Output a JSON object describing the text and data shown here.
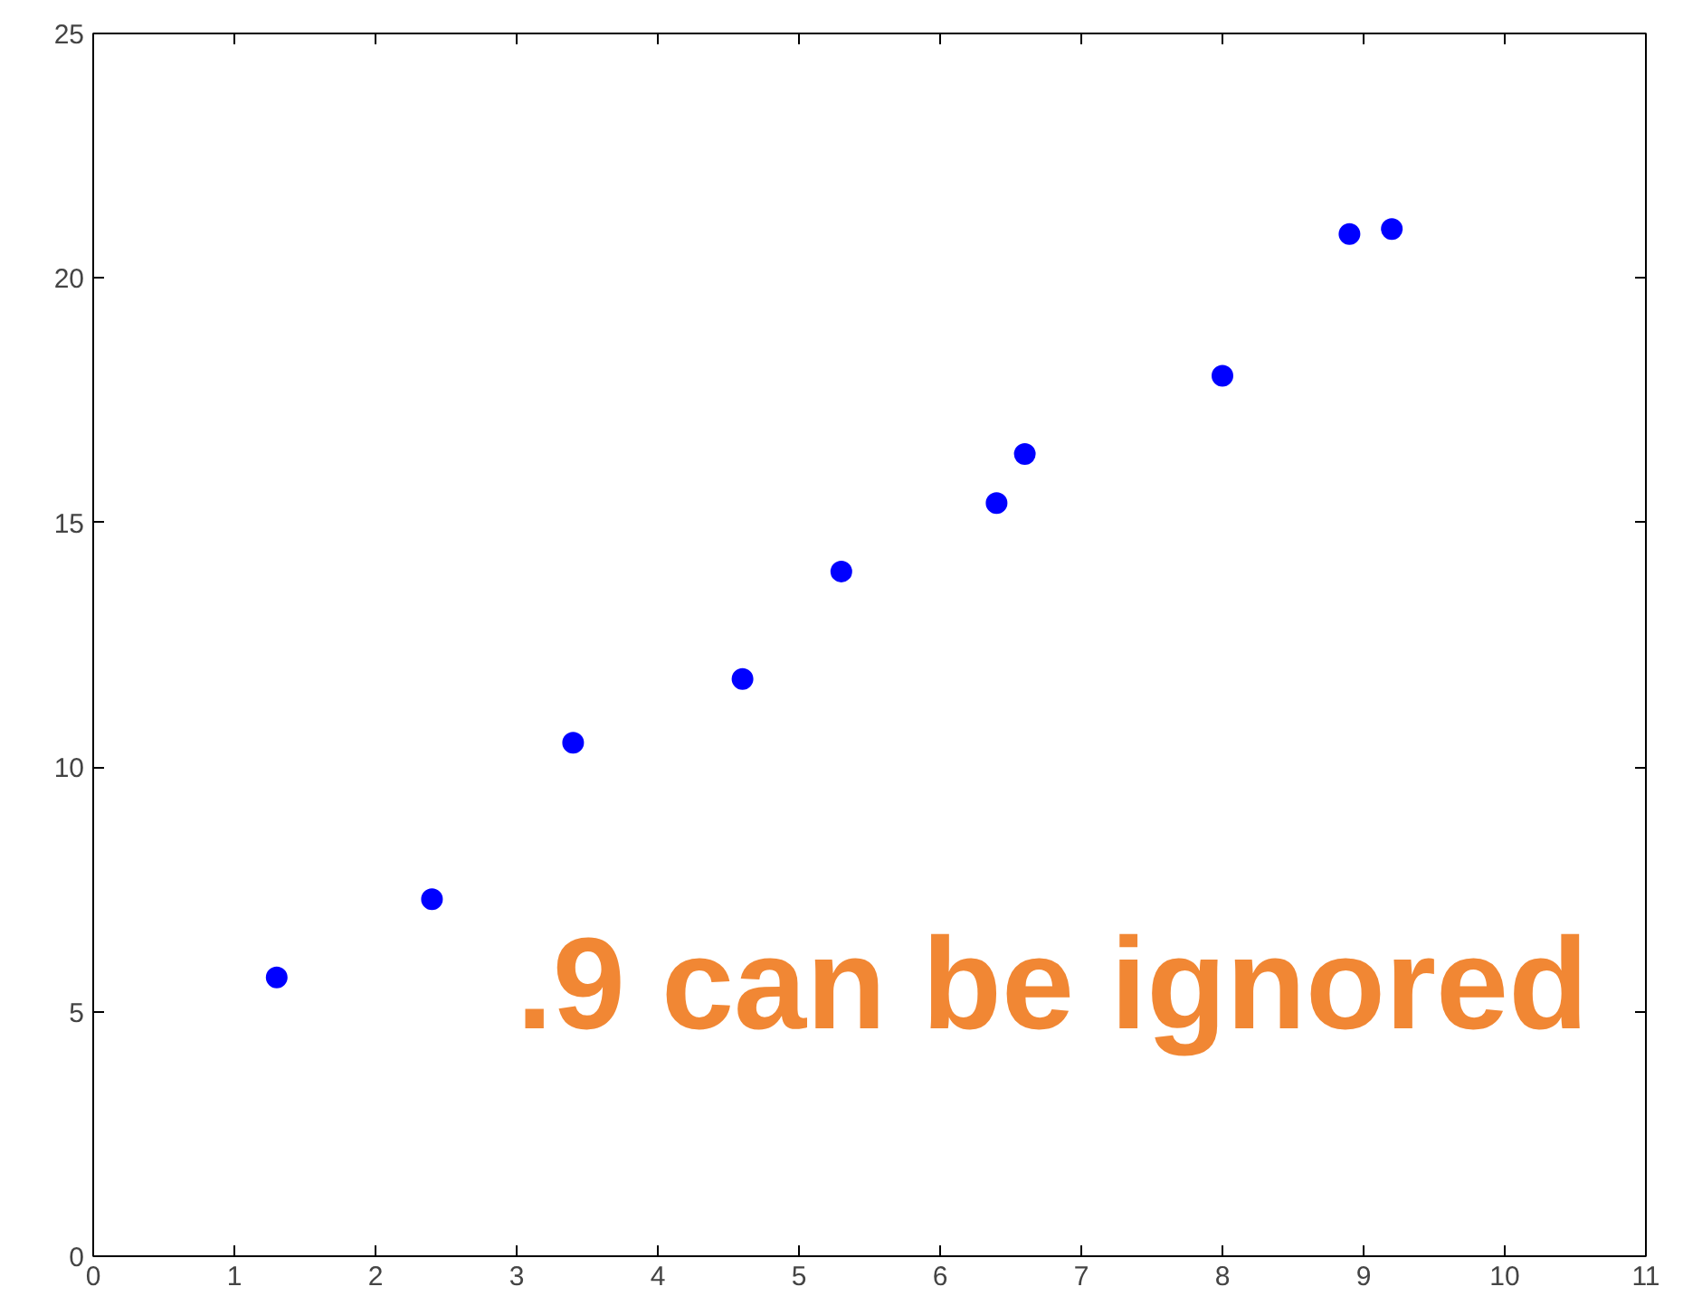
{
  "chart_data": {
    "type": "scatter",
    "x": [
      1.3,
      2.4,
      3.4,
      4.6,
      5.3,
      6.4,
      6.6,
      8.0,
      8.9,
      9.2
    ],
    "series": [
      {
        "color": "#0000ff",
        "values": [
          5.7,
          7.3,
          10.5,
          11.8,
          14.0,
          15.4,
          16.4,
          18.0,
          20.9,
          21.0
        ]
      }
    ],
    "marker": "circle",
    "xlim": [
      0,
      11
    ],
    "xticks": [
      0,
      1,
      2,
      3,
      4,
      5,
      6,
      7,
      8,
      9,
      10,
      11
    ],
    "ylim": [
      0,
      25
    ],
    "yticks": [
      0,
      5,
      10,
      15,
      20,
      25
    ],
    "grid": false,
    "annotations": [
      ".9 can be ignored"
    ]
  }
}
